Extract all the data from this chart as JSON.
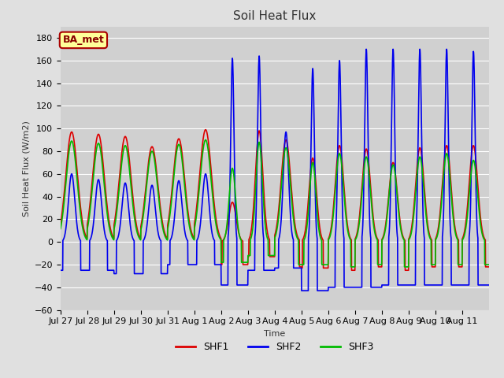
{
  "title": "Soil Heat Flux",
  "ylabel": "Soil Heat Flux (W/m2)",
  "xlabel": "Time",
  "ylim": [
    -60,
    190
  ],
  "yticks": [
    -60,
    -40,
    -20,
    0,
    20,
    40,
    60,
    80,
    100,
    120,
    140,
    160,
    180
  ],
  "background_color": "#e0e0e0",
  "plot_bg_color": "#d0d0d0",
  "grid_color": "#ffffff",
  "line_colors": {
    "SHF1": "#dd0000",
    "SHF2": "#0000ee",
    "SHF3": "#00bb00"
  },
  "annotation_text": "BA_met",
  "annotation_bg": "#ffff99",
  "annotation_border": "#aa0000",
  "annotation_text_color": "#880000",
  "tick_labels": [
    "Jul 27",
    "Jul 28",
    "Jul 29",
    "Jul 30",
    "Jul 31",
    "Aug 1",
    "Aug 2",
    "Aug 3",
    "Aug 4",
    "Aug 5",
    "Aug 6",
    "Aug 7",
    "Aug 8",
    "Aug 9",
    "Aug 10",
    "Aug 11"
  ],
  "figsize": [
    6.4,
    4.8
  ],
  "dpi": 100,
  "n_days": 16,
  "ppd": 144,
  "shf1_peaks": [
    97,
    95,
    93,
    84,
    91,
    99,
    35,
    98,
    90,
    74,
    85,
    82,
    70,
    83,
    85,
    85
  ],
  "shf2_peaks": [
    60,
    55,
    52,
    50,
    54,
    60,
    162,
    164,
    97,
    153,
    160,
    170,
    170,
    170,
    170,
    168
  ],
  "shf3_peaks": [
    89,
    87,
    85,
    80,
    86,
    90,
    65,
    88,
    83,
    70,
    78,
    75,
    68,
    75,
    78,
    72
  ],
  "shf1_troughs": [
    -25,
    -25,
    -28,
    -28,
    -20,
    -20,
    -20,
    -13,
    -22,
    -23,
    -25,
    -22,
    -25,
    -22,
    -22,
    -22
  ],
  "shf2_troughs": [
    -25,
    -25,
    -28,
    -28,
    -20,
    -20,
    -38,
    -25,
    -23,
    -43,
    -40,
    -40,
    -38,
    -38,
    -38,
    -38
  ],
  "shf3_troughs": [
    -22,
    -22,
    -25,
    -25,
    -18,
    -18,
    -18,
    -12,
    -20,
    -20,
    -22,
    -20,
    -22,
    -20,
    -20,
    -20
  ],
  "shf1_width": [
    0.55,
    0.55,
    0.55,
    0.55,
    0.55,
    0.55,
    0.35,
    0.35,
    0.45,
    0.35,
    0.4,
    0.4,
    0.4,
    0.4,
    0.4,
    0.4
  ],
  "shf2_width": [
    0.3,
    0.3,
    0.3,
    0.3,
    0.3,
    0.3,
    0.15,
    0.15,
    0.25,
    0.15,
    0.15,
    0.15,
    0.15,
    0.15,
    0.15,
    0.15
  ],
  "shf3_width": [
    0.52,
    0.52,
    0.52,
    0.52,
    0.52,
    0.52,
    0.3,
    0.3,
    0.42,
    0.3,
    0.38,
    0.38,
    0.38,
    0.38,
    0.38,
    0.38
  ],
  "shf1_peak_pos": [
    0.42,
    0.42,
    0.42,
    0.42,
    0.42,
    0.42,
    0.42,
    0.42,
    0.42,
    0.42,
    0.42,
    0.42,
    0.42,
    0.42,
    0.42,
    0.42
  ],
  "shf2_peak_pos": [
    0.42,
    0.42,
    0.42,
    0.42,
    0.42,
    0.42,
    0.42,
    0.42,
    0.42,
    0.42,
    0.42,
    0.42,
    0.42,
    0.42,
    0.42,
    0.42
  ],
  "shf3_peak_pos": [
    0.42,
    0.42,
    0.42,
    0.42,
    0.42,
    0.42,
    0.42,
    0.42,
    0.42,
    0.42,
    0.42,
    0.42,
    0.42,
    0.42,
    0.42,
    0.42
  ],
  "linewidth": 1.2,
  "title_fontsize": 11,
  "label_fontsize": 8,
  "tick_fontsize": 8,
  "legend_fontsize": 9,
  "annotation_fontsize": 9
}
